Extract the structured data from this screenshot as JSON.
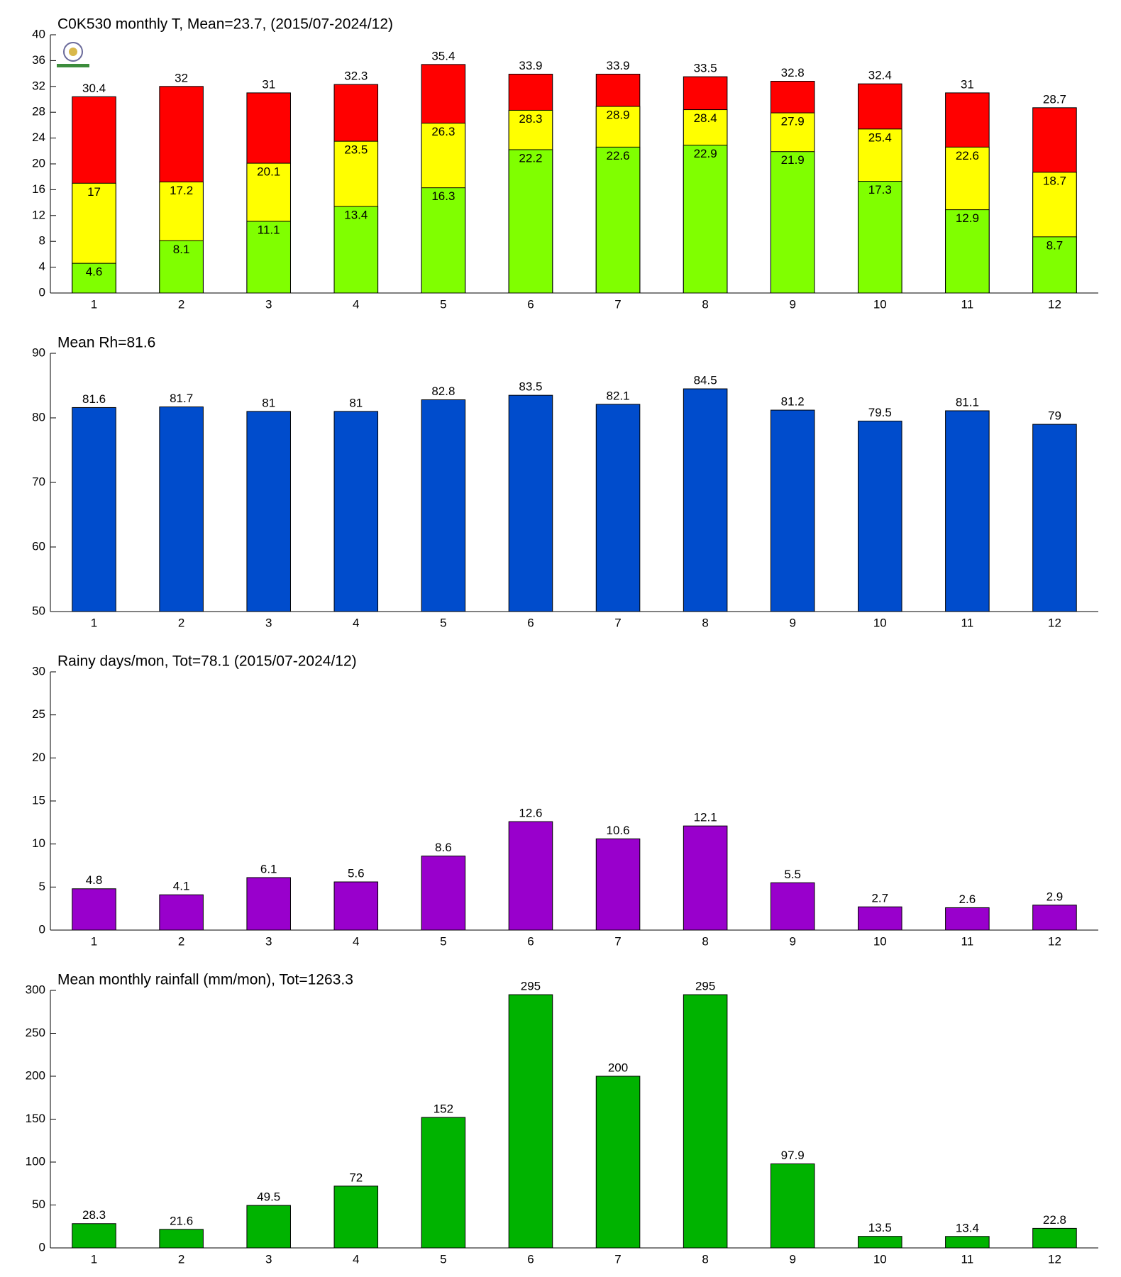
{
  "chart_data": [
    {
      "type": "bar",
      "title": "C0K530 monthly T, Mean=23.7, (2015/07-2024/12)",
      "categories": [
        "1",
        "2",
        "3",
        "4",
        "5",
        "6",
        "7",
        "8",
        "9",
        "10",
        "11",
        "12"
      ],
      "series": [
        {
          "color": "#ff0000",
          "values": [
            30.4,
            32,
            31,
            32.3,
            35.4,
            33.9,
            33.9,
            33.5,
            32.8,
            32.4,
            31,
            28.7
          ]
        },
        {
          "color": "#ffff00",
          "values": [
            17,
            17.2,
            20.1,
            23.5,
            26.3,
            28.3,
            28.9,
            28.4,
            27.9,
            25.4,
            22.6,
            18.7
          ]
        },
        {
          "color": "#80ff00",
          "values": [
            4.6,
            8.1,
            11.1,
            13.4,
            16.3,
            22.2,
            22.6,
            22.9,
            21.9,
            17.3,
            12.9,
            8.7
          ]
        }
      ],
      "ylim": [
        0,
        40
      ],
      "yticks": [
        0,
        4,
        8,
        12,
        16,
        20,
        24,
        28,
        32,
        36,
        40
      ]
    },
    {
      "type": "bar",
      "title": "Mean Rh=81.6",
      "categories": [
        "1",
        "2",
        "3",
        "4",
        "5",
        "6",
        "7",
        "8",
        "9",
        "10",
        "11",
        "12"
      ],
      "series": [
        {
          "color": "#004ccc",
          "values": [
            81.6,
            81.7,
            81,
            81,
            82.8,
            83.5,
            82.1,
            84.5,
            81.2,
            79.5,
            81.1,
            79
          ]
        }
      ],
      "ylim": [
        50,
        90
      ],
      "yticks": [
        50,
        60,
        70,
        80,
        90
      ]
    },
    {
      "type": "bar",
      "title": "Rainy days/mon, Tot=78.1 (2015/07-2024/12)",
      "categories": [
        "1",
        "2",
        "3",
        "4",
        "5",
        "6",
        "7",
        "8",
        "9",
        "10",
        "11",
        "12"
      ],
      "series": [
        {
          "color": "#9900cc",
          "values": [
            4.8,
            4.1,
            6.1,
            5.6,
            8.6,
            12.6,
            10.6,
            12.1,
            5.5,
            2.7,
            2.6,
            2.9
          ]
        }
      ],
      "ylim": [
        0,
        30
      ],
      "yticks": [
        0,
        5,
        10,
        15,
        20,
        25,
        30
      ]
    },
    {
      "type": "bar",
      "title": "Mean monthly rainfall (mm/mon), Tot=1263.3",
      "categories": [
        "1",
        "2",
        "3",
        "4",
        "5",
        "6",
        "7",
        "8",
        "9",
        "10",
        "11",
        "12"
      ],
      "series": [
        {
          "color": "#00b300",
          "values": [
            28.3,
            21.6,
            49.5,
            72,
            152,
            295,
            200,
            295,
            97.9,
            13.5,
            13.4,
            22.8
          ]
        }
      ],
      "ylim": [
        0,
        300
      ],
      "yticks": [
        0,
        50,
        100,
        150,
        200,
        250,
        300
      ]
    }
  ]
}
